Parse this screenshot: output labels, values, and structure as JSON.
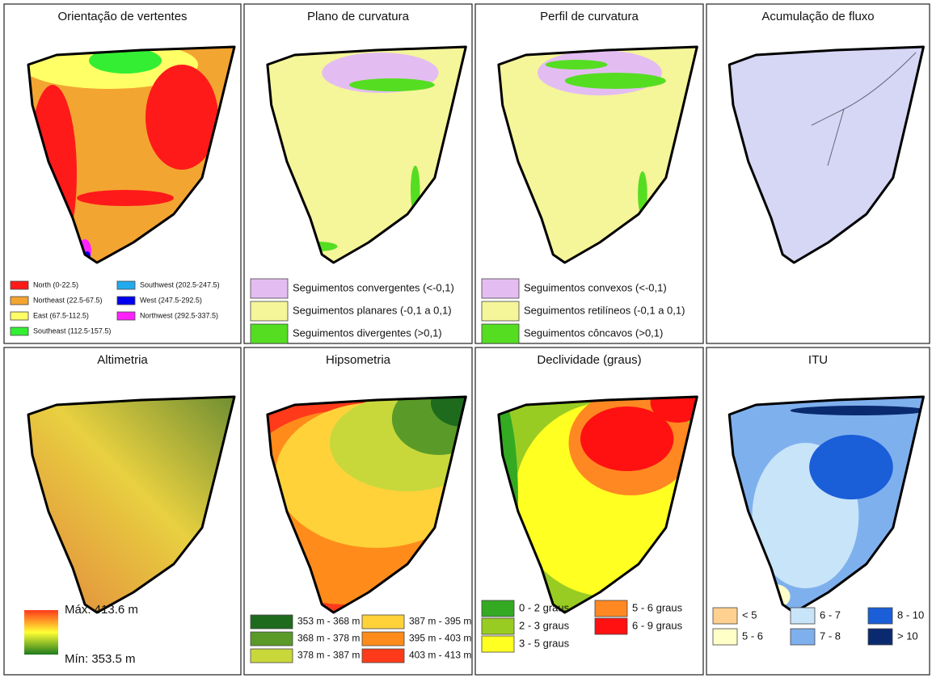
{
  "panels": [
    {
      "title": "Orientação de vertentes",
      "legend": [
        {
          "label": "North (0-22.5)",
          "color": "#ff1a1a"
        },
        {
          "label": "Northeast (22.5-67.5)",
          "color": "#f3a531"
        },
        {
          "label": "East (67.5-112.5)",
          "color": "#ffff66"
        },
        {
          "label": "Southeast (112.5-157.5)",
          "color": "#33ee33"
        },
        {
          "label": "Southwest (202.5-247.5)",
          "color": "#22aaee"
        },
        {
          "label": "West (247.5-292.5)",
          "color": "#0000ee"
        },
        {
          "label": "Northwest (292.5-337.5)",
          "color": "#ff22ff"
        }
      ]
    },
    {
      "title": "Plano de curvatura",
      "legend": [
        {
          "label": "Seguimentos convergentes (<-0,1)",
          "color": "#e3bdf2"
        },
        {
          "label": "Seguimentos planares (-0,1 a 0,1)",
          "color": "#f5f59a"
        },
        {
          "label": "Seguimentos divergentes (>0,1)",
          "color": "#55dd22"
        }
      ]
    },
    {
      "title": "Perfil de curvatura",
      "legend": [
        {
          "label": "Seguimentos convexos (<-0,1)",
          "color": "#e3bdf2"
        },
        {
          "label": "Seguimentos retilíneos (-0,1 a 0,1)",
          "color": "#f5f59a"
        },
        {
          "label": "Seguimentos côncavos (>0,1)",
          "color": "#55dd22"
        }
      ]
    },
    {
      "title": "Acumulação de fluxo",
      "legend": []
    },
    {
      "title": "Altimetria",
      "legend": [],
      "max_label": "Máx: 413.6 m",
      "min_label": "Mín: 353.5 m"
    },
    {
      "title": "Hipsometria",
      "legend": [
        {
          "label": "353 m - 368 m",
          "color": "#1e6b1e"
        },
        {
          "label": "368 m - 378 m",
          "color": "#5a9a28"
        },
        {
          "label": "378 m - 387 m",
          "color": "#c8d83a"
        },
        {
          "label": "387 m - 395 m",
          "color": "#ffd23a"
        },
        {
          "label": "395 m - 403 m",
          "color": "#ff8c1a"
        },
        {
          "label": "403 m - 413 m",
          "color": "#ff3a1a"
        }
      ]
    },
    {
      "title": "Declividade (graus)",
      "legend": [
        {
          "label": "0 - 2 graus",
          "color": "#33aa22"
        },
        {
          "label": "2 - 3 graus",
          "color": "#99cc22"
        },
        {
          "label": "3 - 5 graus",
          "color": "#ffff22"
        },
        {
          "label": "5 - 6 graus",
          "color": "#ff8822"
        },
        {
          "label": "6 - 9 graus",
          "color": "#ff1111"
        }
      ]
    },
    {
      "title": "ITU",
      "legend": [
        {
          "label": "< 5",
          "color": "#ffd090"
        },
        {
          "label": "5 - 6",
          "color": "#ffffc8"
        },
        {
          "label": "6 - 7",
          "color": "#c8e4f8"
        },
        {
          "label": "7 - 8",
          "color": "#7fb0ee"
        },
        {
          "label": "8 - 10",
          "color": "#1a5ed8"
        },
        {
          "label": "> 10",
          "color": "#0a2a70"
        }
      ]
    }
  ]
}
